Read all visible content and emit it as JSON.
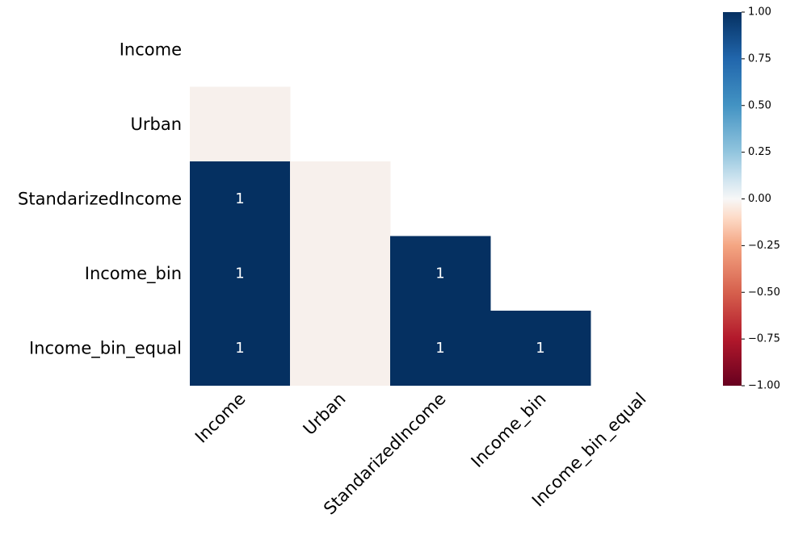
{
  "chart_data": {
    "type": "heatmap",
    "title": "",
    "xlabel": "",
    "ylabel": "",
    "variables": [
      "Income",
      "Urban",
      "StandarizedIncome",
      "Income_bin",
      "Income_bin_equal"
    ],
    "mask": "upper-triangle-including-diagonal",
    "cells": [
      {
        "row": "Urban",
        "col": "Income",
        "value": 0,
        "label": ""
      },
      {
        "row": "StandarizedIncome",
        "col": "Income",
        "value": 1,
        "label": "1"
      },
      {
        "row": "StandarizedIncome",
        "col": "Urban",
        "value": 0,
        "label": ""
      },
      {
        "row": "Income_bin",
        "col": "Income",
        "value": 1,
        "label": "1"
      },
      {
        "row": "Income_bin",
        "col": "Urban",
        "value": 0,
        "label": ""
      },
      {
        "row": "Income_bin",
        "col": "StandarizedIncome",
        "value": 1,
        "label": "1"
      },
      {
        "row": "Income_bin_equal",
        "col": "Income",
        "value": 1,
        "label": "1"
      },
      {
        "row": "Income_bin_equal",
        "col": "Urban",
        "value": 0,
        "label": ""
      },
      {
        "row": "Income_bin_equal",
        "col": "StandarizedIncome",
        "value": 1,
        "label": "1"
      },
      {
        "row": "Income_bin_equal",
        "col": "Income_bin",
        "value": 1,
        "label": "1"
      }
    ],
    "colorbar": {
      "range": [
        -1,
        1
      ],
      "ticks": [
        "1.00",
        "0.75",
        "0.50",
        "0.25",
        "0.00",
        "−0.25",
        "−0.50",
        "−0.75",
        "−1.00"
      ],
      "colormap": "RdBu"
    },
    "colors": {
      "positive_one": "#053061",
      "zero": "#f7f0ec"
    }
  }
}
